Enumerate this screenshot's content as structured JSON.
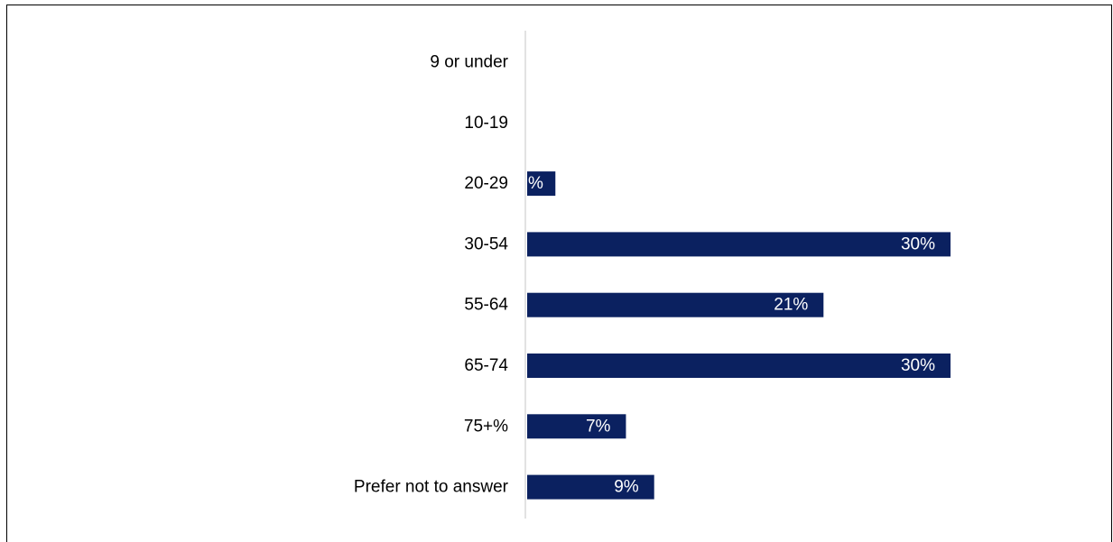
{
  "chart_data": {
    "type": "bar",
    "orientation": "horizontal",
    "title": "",
    "xlabel": "",
    "ylabel": "",
    "categories": [
      "9 or under",
      "10-19",
      "20-29",
      "30-54",
      "55-64",
      "65-74",
      "75+%",
      "Prefer not to answer"
    ],
    "values": [
      0,
      0,
      2,
      30,
      21,
      30,
      7,
      9
    ],
    "value_labels": [
      "",
      "",
      "%",
      "30%",
      "21%",
      "30%",
      "7%",
      "9%"
    ],
    "xlim": [
      0,
      30
    ],
    "grid": false,
    "legend": "none",
    "bar_color": "#0b2160",
    "label_color": "#ffffff"
  }
}
